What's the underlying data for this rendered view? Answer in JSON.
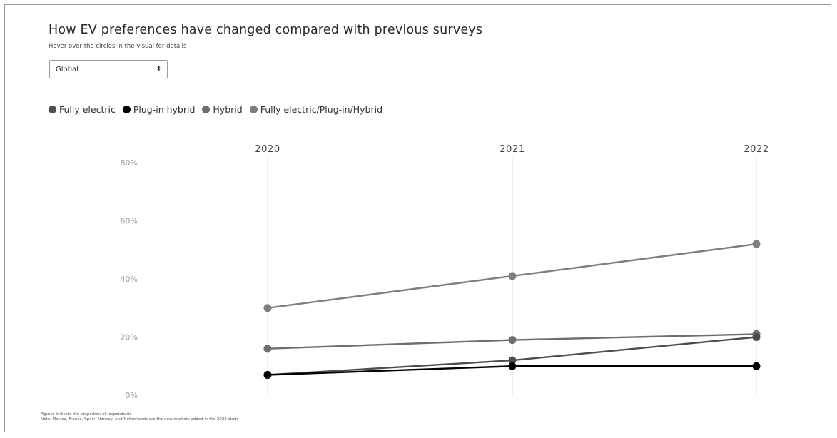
{
  "title": "How EV preferences have changed compared with previous surveys",
  "subtitle": "Hover over the circles in the visual for details",
  "region_select": {
    "value": "Global",
    "caret": "⬍"
  },
  "footnotes": [
    "Figures indicate the proportion of respondents",
    "Note: Mexico, France, Spain, Norway, and Netherlands are the new markets added in the 2022 study"
  ],
  "chart_data": {
    "type": "line",
    "x": [
      "2020",
      "2021",
      "2022"
    ],
    "y_ticks": [
      "0%",
      "20%",
      "40%",
      "60%",
      "80%"
    ],
    "ylim": [
      0,
      80
    ],
    "grid": "vertical lines at each year",
    "legend_position": "top-left",
    "series": [
      {
        "name": "Fully electric",
        "color": "#4d4d4d",
        "values": [
          7,
          12,
          20
        ]
      },
      {
        "name": "Plug-in hybrid",
        "color": "#000000",
        "values": [
          7,
          10,
          10
        ]
      },
      {
        "name": "Hybrid",
        "color": "#6e6e6e",
        "values": [
          16,
          19,
          21
        ]
      },
      {
        "name": "Fully electric/Plug-in/Hybrid",
        "color": "#7e7e7e",
        "values": [
          30,
          41,
          52
        ]
      }
    ]
  }
}
